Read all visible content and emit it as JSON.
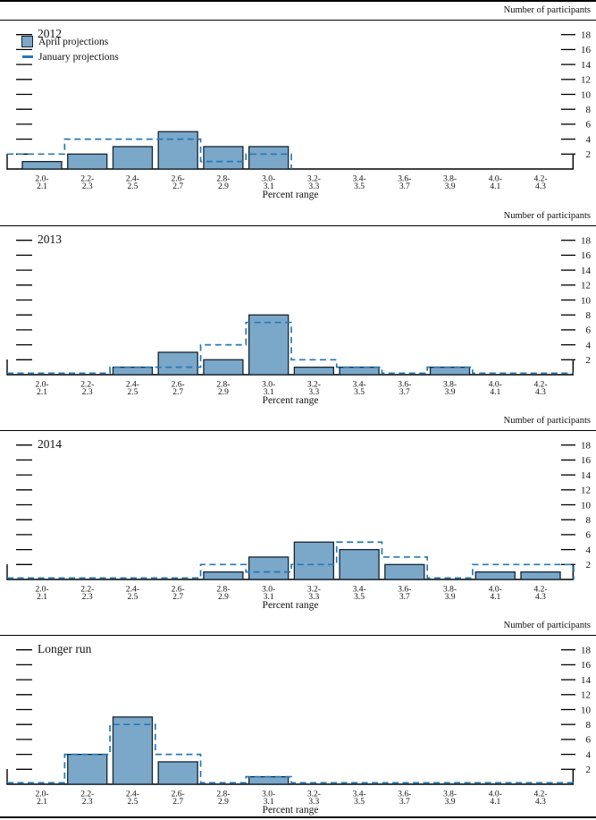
{
  "figure": {
    "y_axis_title": "Number of participants",
    "x_axis_title": "Percent range",
    "colors": {
      "bar_fill": "#7BA7C9",
      "bar_stroke": "#142430",
      "january_line": "#2579B5",
      "axis": "#000000"
    }
  },
  "chart_data": {
    "type": "bar",
    "subtype": "histogram-panels",
    "xlabel": "Percent range",
    "ylabel": "Number of participants",
    "ylim": [
      0,
      20
    ],
    "y_ticks": [
      2,
      4,
      6,
      8,
      10,
      12,
      14,
      16,
      18
    ],
    "grid": false,
    "legend_position": "top-left of first panel",
    "categories": [
      "2.0-2.1",
      "2.2-2.3",
      "2.4-2.5",
      "2.6-2.7",
      "2.8-2.9",
      "3.0-3.1",
      "3.2-3.3",
      "3.4-3.5",
      "3.6-3.7",
      "3.8-3.9",
      "4.0-4.1",
      "4.2-4.3"
    ],
    "bin_labels": [
      [
        "2.0-",
        "2.1"
      ],
      [
        "2.2-",
        "2.3"
      ],
      [
        "2.4-",
        "2.5"
      ],
      [
        "2.6-",
        "2.7"
      ],
      [
        "2.8-",
        "2.9"
      ],
      [
        "3.0-",
        "3.1"
      ],
      [
        "3.2-",
        "3.3"
      ],
      [
        "3.4-",
        "3.5"
      ],
      [
        "3.6-",
        "3.7"
      ],
      [
        "3.8-",
        "3.9"
      ],
      [
        "4.0-",
        "4.1"
      ],
      [
        "4.2-",
        "4.3"
      ]
    ],
    "panels": [
      {
        "title": "2012",
        "series": [
          {
            "name": "April projections",
            "style": "bar",
            "values": [
              1,
              2,
              3,
              5,
              3,
              3,
              0,
              0,
              0,
              0,
              0,
              0
            ]
          },
          {
            "name": "January projections",
            "style": "dash",
            "values": [
              2,
              4,
              4,
              4,
              1,
              2,
              null,
              null,
              null,
              null,
              null,
              null
            ]
          }
        ]
      },
      {
        "title": "2013",
        "series": [
          {
            "name": "April projections",
            "style": "bar",
            "values": [
              0,
              0,
              1,
              3,
              2,
              8,
              1,
              1,
              0,
              1,
              0,
              0
            ]
          },
          {
            "name": "January projections",
            "style": "dash",
            "values": [
              0,
              0,
              1,
              1,
              4,
              7,
              2,
              1,
              0,
              1,
              0,
              0
            ]
          }
        ]
      },
      {
        "title": "2014",
        "series": [
          {
            "name": "April projections",
            "style": "bar",
            "values": [
              0,
              0,
              0,
              0,
              1,
              3,
              5,
              4,
              2,
              0,
              1,
              1
            ]
          },
          {
            "name": "January projections",
            "style": "dash",
            "values": [
              0,
              0,
              0,
              0,
              2,
              1,
              2,
              5,
              3,
              0,
              2,
              2
            ]
          }
        ]
      },
      {
        "title": "Longer run",
        "series": [
          {
            "name": "April projections",
            "style": "bar",
            "values": [
              0,
              4,
              9,
              3,
              0,
              1,
              0,
              0,
              0,
              0,
              0,
              0
            ]
          },
          {
            "name": "January projections",
            "style": "dash",
            "values": [
              0,
              4,
              8,
              4,
              0,
              1,
              0,
              0,
              0,
              0,
              0,
              0
            ]
          }
        ]
      }
    ]
  }
}
